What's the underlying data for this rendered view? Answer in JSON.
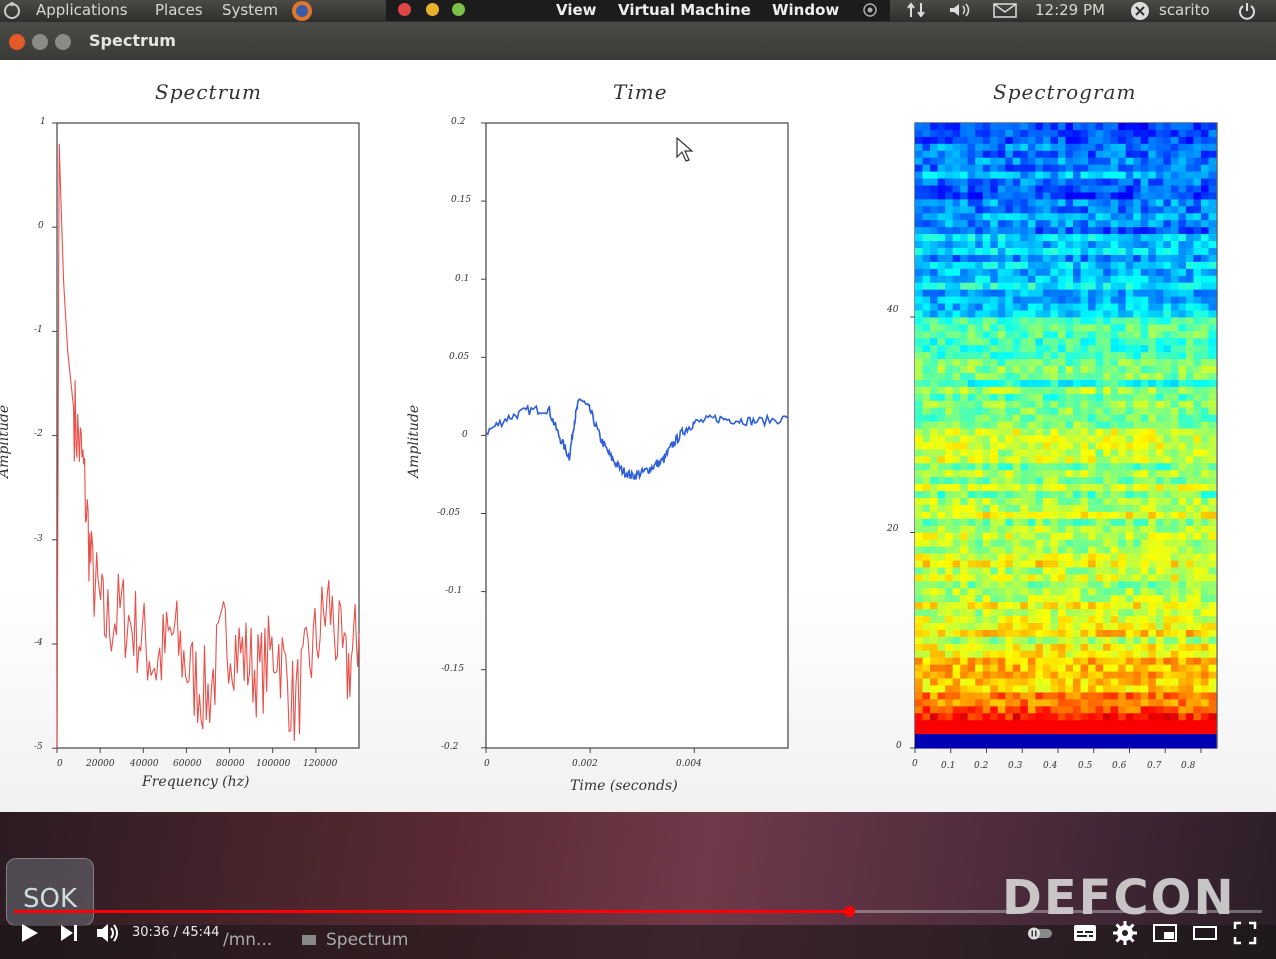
{
  "top_panel": {
    "menus": [
      "Applications",
      "Places",
      "System"
    ],
    "vm_menus": [
      "View",
      "Virtual Machine",
      "Window"
    ],
    "clock": "12:29 PM",
    "user": "scarito"
  },
  "window": {
    "title": "Spectrum"
  },
  "plots": {
    "spectrum": {
      "title": "Spectrum",
      "xlabel": "Frequency (hz)",
      "ylabel": "Amplitude",
      "xticks": [
        "0",
        "20000",
        "40000",
        "60000",
        "80000",
        "100000",
        "120000"
      ],
      "yticks": [
        "1",
        "0",
        "-1",
        "-2",
        "-3",
        "-4",
        "-5"
      ]
    },
    "time": {
      "title": "Time",
      "xlabel": "Time (seconds)",
      "ylabel": "Amplitude",
      "xticks": [
        "0",
        "0.002",
        "0.004"
      ],
      "yticks": [
        "0.2",
        "0.15",
        "0.1",
        "0.05",
        "0",
        "-0.05",
        "-0.1",
        "-0.15",
        "-0.2"
      ]
    },
    "spectrogram": {
      "title": "Spectrogram",
      "xticks": [
        "0",
        "0.1",
        "0.2",
        "0.3",
        "0.4",
        "0.5",
        "0.6",
        "0.7",
        "0.8"
      ],
      "yticks": [
        "40",
        "20",
        "0"
      ]
    }
  },
  "chart_data": [
    {
      "type": "line",
      "title": "Spectrum",
      "xlabel": "Frequency (hz)",
      "ylabel": "Amplitude",
      "xlim": [
        0,
        140000
      ],
      "ylim": [
        -5,
        1
      ],
      "color": "#e8504a",
      "x": [
        0,
        1000,
        3000,
        5000,
        8000,
        12000,
        16000,
        22000,
        30000,
        38000,
        46000,
        54000,
        62000,
        70000,
        78000,
        86000,
        94000,
        102000,
        110000,
        118000,
        126000,
        134000,
        140000
      ],
      "y": [
        -5,
        0.8,
        -0.5,
        -1.2,
        -1.8,
        -2.3,
        -3.3,
        -3.8,
        -3.7,
        -3.9,
        -4.2,
        -3.9,
        -4.3,
        -4.5,
        -3.9,
        -4.1,
        -4.3,
        -4.0,
        -4.6,
        -4.1,
        -3.6,
        -4.3,
        -3.9
      ]
    },
    {
      "type": "line",
      "title": "Time",
      "xlabel": "Time (seconds)",
      "ylabel": "Amplitude",
      "xlim": [
        0,
        0.0058
      ],
      "ylim": [
        -0.2,
        0.2
      ],
      "color": "#2f5fd8",
      "x": [
        0,
        0.0004,
        0.0008,
        0.0012,
        0.0014,
        0.0016,
        0.0017,
        0.0018,
        0.002,
        0.0022,
        0.0024,
        0.0026,
        0.0028,
        0.003,
        0.0032,
        0.0034,
        0.0036,
        0.0038,
        0.004,
        0.0044,
        0.0048,
        0.0052,
        0.0058
      ],
      "y": [
        0.002,
        0.011,
        0.016,
        0.017,
        0.0,
        -0.014,
        0.01,
        0.024,
        0.016,
        -0.002,
        -0.014,
        -0.022,
        -0.026,
        -0.024,
        -0.02,
        -0.016,
        -0.005,
        0.003,
        0.008,
        0.011,
        0.01,
        0.009,
        0.011
      ]
    },
    {
      "type": "heatmap",
      "title": "Spectrogram",
      "xlim": [
        0,
        0.8
      ],
      "ylim": [
        0,
        58
      ],
      "colormap": "jet"
    }
  ],
  "player": {
    "time_display": "30:36 / 45:44",
    "progress": 0.669,
    "taskbar_item": "Spectrum",
    "taskbar_path": "/mn...",
    "watermark": "DEFCON",
    "badge": "SOK"
  }
}
